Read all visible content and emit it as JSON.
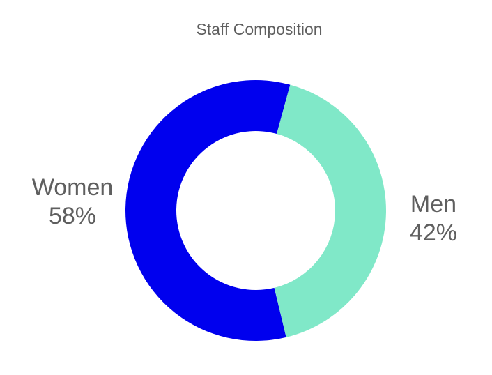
{
  "chart_data": {
    "type": "pie",
    "variant": "donut",
    "title": "Staff Composition",
    "categories": [
      "Women",
      "Men"
    ],
    "values": [
      58,
      42
    ],
    "value_labels": [
      "58%",
      "42%"
    ],
    "colors": [
      "#0000ee",
      "#80e8c8"
    ],
    "legend": "none"
  }
}
